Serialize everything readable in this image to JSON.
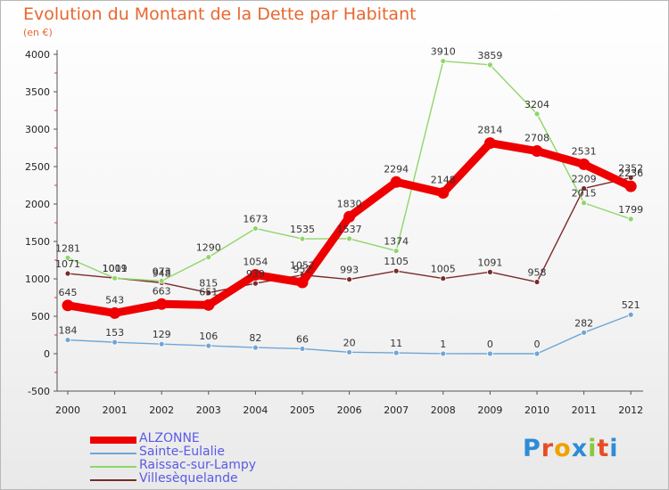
{
  "header": {
    "title": "Evolution du Montant de la Dette par Habitant",
    "subtitle": "(en €)"
  },
  "logo": {
    "text": "Proxiti",
    "letter_colors": [
      "#2e8bd6",
      "#e84c26",
      "#f0a000",
      "#2e8bd6",
      "#8cc63f",
      "#e84c26",
      "#2e8bd6"
    ]
  },
  "chart_data": {
    "type": "line",
    "title": "Evolution du Montant de la Dette par Habitant",
    "subtitle": "(en €)",
    "xlabel": "",
    "ylabel": "",
    "x": [
      "2000",
      "2001",
      "2002",
      "2003",
      "2004",
      "2005",
      "2006",
      "2007",
      "2008",
      "2009",
      "2010",
      "2011",
      "2012"
    ],
    "ylim": [
      -500,
      4000
    ],
    "yticks": [
      -500,
      0,
      500,
      1000,
      1500,
      2000,
      2500,
      3000,
      3500,
      4000
    ],
    "legend_position": "bottom-left",
    "grid": false,
    "series": [
      {
        "name": "ALZONNE",
        "color": "#ee0000",
        "values": [
          645,
          543,
          663,
          651,
          1054,
          952,
          1830,
          2294,
          2148,
          2814,
          2708,
          2531,
          2236
        ],
        "labels": [
          "645",
          "543",
          "663",
          "651",
          "1054",
          "952",
          "1830",
          "2294",
          "2148",
          "2814",
          "2708",
          "2531",
          "2236"
        ]
      },
      {
        "name": "Sainte-Eulalie",
        "color": "#6fa6d6",
        "values": [
          184,
          153,
          129,
          106,
          82,
          66,
          20,
          11,
          1,
          0,
          0,
          282,
          521
        ],
        "labels": [
          "184",
          "153",
          "129",
          "106",
          "82",
          "66",
          "20",
          "11",
          "1",
          "0",
          "0",
          "282",
          "521"
        ]
      },
      {
        "name": "Raissac-sur-Lampy",
        "color": "#8fd66a",
        "values": [
          1281,
          1009,
          973,
          1290,
          1673,
          1535,
          1537,
          1374,
          3910,
          3859,
          3204,
          2015,
          1799
        ],
        "labels": [
          "1281",
          "1009",
          "973",
          "1290",
          "1673",
          "1535",
          "1537",
          "1374",
          "3910",
          "3859",
          "3204",
          "2015",
          "1799"
        ]
      },
      {
        "name": "Villesèquelande",
        "color": "#7a2a2a",
        "values": [
          1071,
          1011,
          948,
          815,
          939,
          1052,
          993,
          1105,
          1005,
          1091,
          958,
          2209,
          2352
        ],
        "labels": [
          "1071",
          "1011",
          "948",
          "815",
          "939",
          "1052",
          "993",
          "1105",
          "1005",
          "1091",
          "958",
          "2209",
          "2352"
        ]
      }
    ]
  }
}
